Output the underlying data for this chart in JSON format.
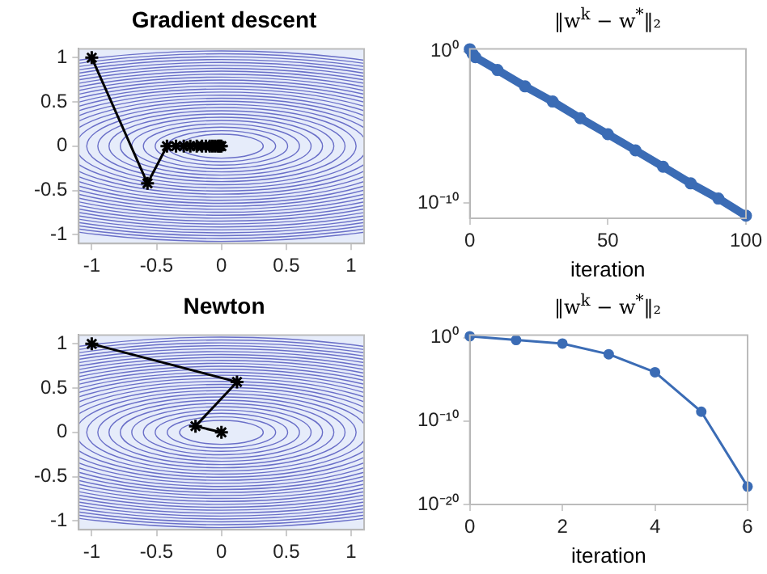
{
  "chart_data": [
    {
      "type": "line",
      "title": "Gradient descent",
      "marker": "cross",
      "xlim": [
        -1.1,
        1.1
      ],
      "ylim": [
        -1.1,
        1.1
      ],
      "xticks": [
        -1,
        -0.5,
        0,
        0.5,
        1
      ],
      "yticks": [
        -1,
        -0.5,
        0,
        0.5,
        1
      ],
      "series": [
        {
          "color": "#000000",
          "x": [
            -1,
            -0.57,
            -0.42,
            -0.35,
            -0.29,
            -0.24,
            -0.19,
            -0.15,
            -0.12,
            -0.09,
            -0.07,
            -0.05,
            -0.03,
            -0.02,
            -0.01,
            0
          ],
          "values": [
            1,
            -0.42,
            0,
            0,
            0,
            0,
            0,
            0,
            0,
            0,
            0,
            0,
            0,
            0,
            0,
            0
          ]
        }
      ]
    },
    {
      "type": "line",
      "title": "‖w$^{k}$ − w$^{*}$‖₂",
      "xlabel": "iteration",
      "log": "y",
      "marker": "circle",
      "xlim": [
        0,
        100
      ],
      "ylim": [
        1e-11,
        1.5
      ],
      "xticks": [
        0,
        50,
        100
      ],
      "yticks": [
        {
          "value": 1,
          "label": "10⁰"
        },
        {
          "value": 1e-10,
          "label": "10⁻¹⁰"
        }
      ],
      "series": [
        {
          "color": "#3b6cb5",
          "x": [
            0,
            1,
            2,
            10,
            20,
            30,
            40,
            50,
            60,
            70,
            80,
            90,
            100
          ],
          "values": [
            1.41,
            0.71,
            0.42,
            0.06,
            0.005,
            0.0005,
            4e-05,
            3.5e-06,
            3e-07,
            2.5e-08,
            2e-09,
            2e-10,
            1.5e-11
          ]
        }
      ]
    },
    {
      "type": "line",
      "title": "Newton",
      "marker": "cross",
      "xlim": [
        -1.1,
        1.1
      ],
      "ylim": [
        -1.1,
        1.1
      ],
      "xticks": [
        -1,
        -0.5,
        0,
        0.5,
        1
      ],
      "yticks": [
        -1,
        -0.5,
        0,
        0.5,
        1
      ],
      "series": [
        {
          "color": "#000000",
          "x": [
            -1,
            0.12,
            -0.2,
            0
          ],
          "values": [
            1,
            0.57,
            0.07,
            0
          ]
        }
      ]
    },
    {
      "type": "line",
      "title": "‖w$^{k}$ − w$^{*}$‖₂",
      "xlabel": "iteration",
      "log": "y",
      "marker": "circle",
      "xlim": [
        0,
        6
      ],
      "ylim": [
        1e-20,
        2
      ],
      "xticks": [
        0,
        2,
        4,
        6
      ],
      "yticks": [
        {
          "value": 1,
          "label": "10⁰"
        },
        {
          "value": 1e-10,
          "label": "10⁻¹⁰"
        },
        {
          "value": 1e-20,
          "label": "10⁻²⁰"
        }
      ],
      "series": [
        {
          "color": "#3b6cb5",
          "x": [
            0,
            1,
            2,
            3,
            4,
            5,
            6
          ],
          "values": [
            1.41,
            0.5,
            0.19,
            0.01,
            7e-05,
            1.3e-09,
            1.4e-18
          ]
        }
      ]
    }
  ]
}
